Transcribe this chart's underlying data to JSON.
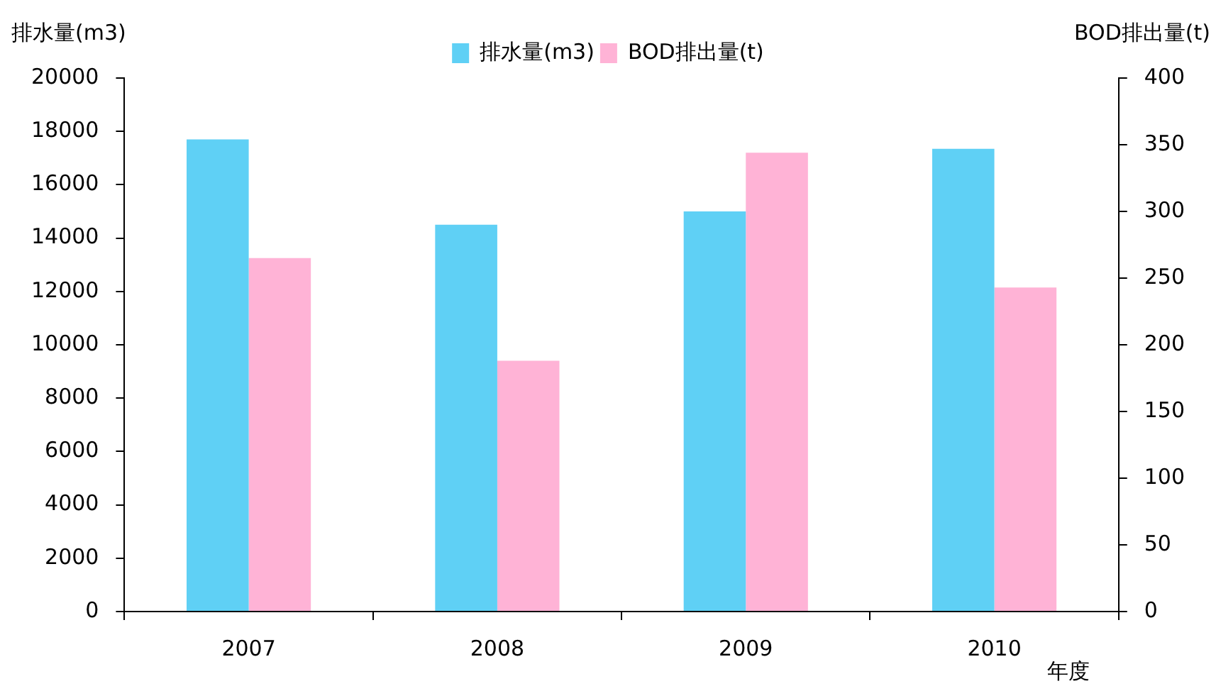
{
  "chart_data": {
    "type": "bar",
    "xlabel": "年度",
    "ylabel": "排水量(m3)",
    "y2label": "BOD排出量(t)",
    "categories": [
      "2007",
      "2008",
      "2009",
      "2010"
    ],
    "series": [
      {
        "name": "排水量(m3)",
        "color": "#5fd0f5",
        "values": [
          17700,
          14500,
          15000,
          17350
        ]
      },
      {
        "name": "BOD排出量(t)",
        "color": "#ffb3d6",
        "axis": "y2",
        "values": [
          265,
          188,
          344,
          243
        ]
      }
    ],
    "ylim": [
      0,
      20000
    ],
    "yticks": [
      0,
      2000,
      4000,
      6000,
      8000,
      10000,
      12000,
      14000,
      16000,
      18000,
      20000
    ],
    "y2lim": [
      0,
      400
    ],
    "y2ticks": [
      0,
      50,
      100,
      150,
      200,
      250,
      300,
      350,
      400
    ],
    "grid": false,
    "legend": "top"
  }
}
